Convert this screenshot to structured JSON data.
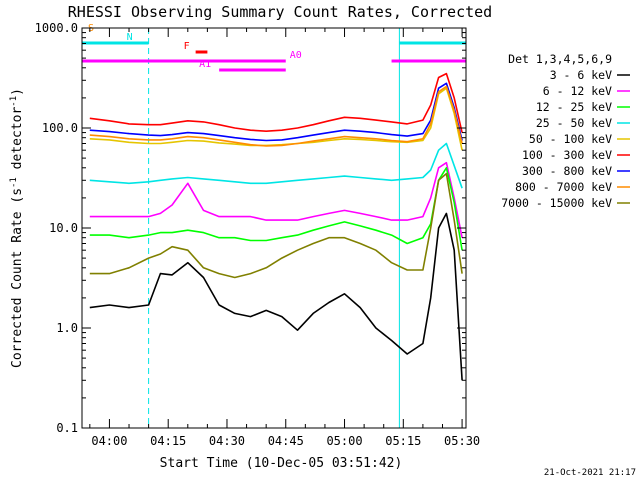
{
  "chart_data": {
    "type": "line",
    "title": "RHESSI Observing Summary Count Rates, Corrected",
    "xlabel": "Start Time (10-Dec-05 03:51:42)",
    "ylabel": "Corrected Count Rate (s⁻¹ detector⁻¹)",
    "ylabel_parts": {
      "main": "Corrected Count Rate (s",
      "sup1": "-1",
      "mid": " detector",
      "sup2": "-1",
      "end": ")"
    },
    "yscale": "log",
    "ylim": [
      0.1,
      1000
    ],
    "xlim": [
      "03:53",
      "05:31"
    ],
    "yticks": [
      {
        "v": 0.1,
        "label": "0.1"
      },
      {
        "v": 1,
        "label": "1.0"
      },
      {
        "v": 10,
        "label": "10.0"
      },
      {
        "v": 100,
        "label": "100.0"
      },
      {
        "v": 1000,
        "label": "1000.0"
      }
    ],
    "xticks": [
      "04:00",
      "04:15",
      "04:30",
      "04:45",
      "05:00",
      "05:15",
      "05:30"
    ],
    "legend_title": "Det 1,3,4,5,6,9",
    "legend_position": "right",
    "timestamp": "21-Oct-2021 21:17",
    "flags": [
      {
        "label": "S",
        "color": "#ff8c00",
        "y": 1,
        "segments": []
      },
      {
        "label": "N",
        "color": "#00e5e5",
        "y": 2,
        "segments": [
          [
            "03:53",
            "04:10"
          ],
          [
            "05:14",
            "05:31"
          ]
        ]
      },
      {
        "label": "F",
        "color": "#ff0000",
        "y": 3,
        "segments": [
          [
            "04:22",
            "04:25"
          ]
        ]
      },
      {
        "label": "A0",
        "color": "#ff00ff",
        "y": 4,
        "segments": [
          [
            "03:53",
            "04:45"
          ],
          [
            "05:12",
            "05:31"
          ]
        ]
      },
      {
        "label": "A1",
        "color": "#ff00ff",
        "y": 5,
        "segments": [
          [
            "04:28",
            "04:45"
          ]
        ]
      }
    ],
    "vlines": [
      {
        "t": "04:10",
        "style": "dashed",
        "color": "#00e5e5"
      },
      {
        "t": "05:14",
        "style": "solid",
        "color": "#00e5e5"
      },
      {
        "t": "05:31",
        "style": "dashed",
        "color": "#00e5e5"
      }
    ],
    "x": [
      "03:55",
      "04:00",
      "04:05",
      "04:10",
      "04:13",
      "04:16",
      "04:20",
      "04:24",
      "04:28",
      "04:32",
      "04:36",
      "04:40",
      "04:44",
      "04:48",
      "04:52",
      "04:56",
      "05:00",
      "05:04",
      "05:08",
      "05:12",
      "05:16",
      "05:20",
      "05:22",
      "05:24",
      "05:26",
      "05:28",
      "05:30"
    ],
    "series": [
      {
        "name": "3 - 6 keV",
        "color": "#000000",
        "values": [
          1.6,
          1.7,
          1.6,
          1.7,
          3.5,
          3.4,
          4.5,
          3.2,
          1.7,
          1.4,
          1.3,
          1.5,
          1.3,
          0.95,
          1.4,
          1.8,
          2.2,
          1.6,
          1.0,
          0.75,
          0.55,
          0.7,
          2.0,
          10.0,
          14.0,
          6.0,
          0.3
        ]
      },
      {
        "name": "6 - 12 keV",
        "color": "#ff00ff",
        "values": [
          13,
          13,
          13,
          13,
          14,
          17,
          28,
          15,
          13,
          13,
          13,
          12,
          12,
          12,
          13,
          14,
          15,
          14,
          13,
          12,
          12,
          13,
          20,
          40,
          45,
          20,
          8
        ]
      },
      {
        "name": "12 - 25 keV",
        "color": "#00ff00",
        "values": [
          8.5,
          8.5,
          8.0,
          8.5,
          9.0,
          9.0,
          9.5,
          9.0,
          8.0,
          8.0,
          7.5,
          7.5,
          8.0,
          8.5,
          9.5,
          10.5,
          11.5,
          10.5,
          9.5,
          8.5,
          7.0,
          8.0,
          11.0,
          30.0,
          40.0,
          18.0,
          6.0
        ]
      },
      {
        "name": "25 - 50 keV",
        "color": "#00e5e5",
        "values": [
          30,
          29,
          28,
          29,
          30,
          31,
          32,
          31,
          30,
          29,
          28,
          28,
          29,
          30,
          31,
          32,
          33,
          32,
          31,
          30,
          31,
          32,
          38,
          60,
          70,
          42,
          25
        ]
      },
      {
        "name": "50 - 100 keV",
        "color": "#e5c500",
        "values": [
          78,
          76,
          72,
          70,
          70,
          72,
          75,
          74,
          71,
          69,
          67,
          67,
          68,
          70,
          72,
          75,
          78,
          77,
          75,
          73,
          72,
          75,
          100,
          220,
          250,
          140,
          60
        ]
      },
      {
        "name": "100 - 300 keV",
        "color": "#ff0000",
        "values": [
          125,
          118,
          110,
          108,
          108,
          112,
          118,
          115,
          108,
          100,
          95,
          93,
          95,
          100,
          108,
          118,
          128,
          125,
          120,
          115,
          110,
          120,
          170,
          320,
          350,
          200,
          90
        ]
      },
      {
        "name": "300 - 800 keV",
        "color": "#0000ff",
        "values": [
          95,
          92,
          88,
          85,
          84,
          86,
          90,
          88,
          84,
          80,
          77,
          75,
          76,
          80,
          85,
          90,
          95,
          93,
          90,
          86,
          83,
          88,
          120,
          250,
          280,
          160,
          75
        ]
      },
      {
        "name": "800 - 7000 keV",
        "color": "#ff8c00",
        "values": [
          85,
          82,
          78,
          76,
          76,
          78,
          82,
          80,
          76,
          72,
          68,
          66,
          67,
          70,
          74,
          78,
          82,
          80,
          78,
          75,
          73,
          78,
          110,
          230,
          260,
          150,
          70
        ]
      },
      {
        "name": "7000 - 15000 keV",
        "color": "#808000",
        "values": [
          3.5,
          3.5,
          4.0,
          5.0,
          5.5,
          6.5,
          6.0,
          4.0,
          3.5,
          3.2,
          3.5,
          4.0,
          5.0,
          6.0,
          7.0,
          8.0,
          8.0,
          7.0,
          6.0,
          4.5,
          3.8,
          3.8,
          10.0,
          30.0,
          35.0,
          12.0,
          3.5
        ]
      }
    ]
  }
}
